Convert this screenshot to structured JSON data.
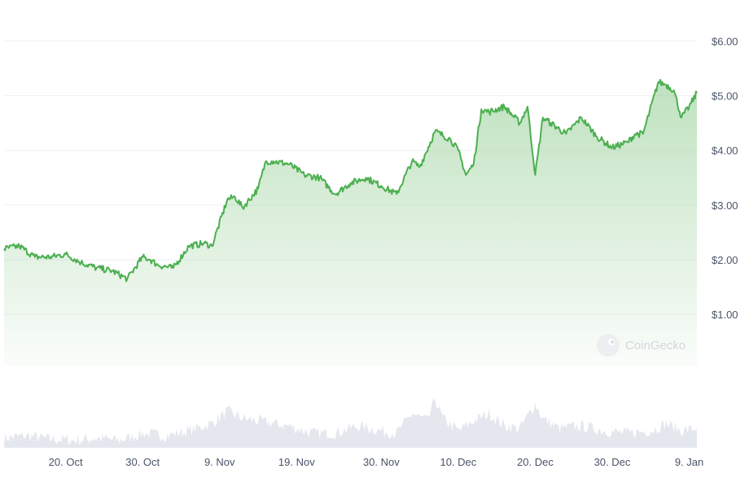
{
  "chart_data": {
    "type": "area",
    "title": "",
    "xlabel": "",
    "ylabel": "",
    "y_tick_labels": [
      "$1.00",
      "$2.00",
      "$3.00",
      "$4.00",
      "$5.00",
      "$6.00"
    ],
    "y_tick_values": [
      1,
      2,
      3,
      4,
      5,
      6
    ],
    "ylim": [
      0.05,
      6.05
    ],
    "x_tick_labels": [
      "20. Oct",
      "30. Oct",
      "9. Nov",
      "19. Nov",
      "30. Nov",
      "10. Dec",
      "20. Dec",
      "30. Dec",
      "9. Jan"
    ],
    "x_tick_dates": [
      "2023-10-20",
      "2023-10-30",
      "2023-11-09",
      "2023-11-19",
      "2023-11-30",
      "2023-12-10",
      "2023-12-20",
      "2023-12-30",
      "2024-01-09"
    ],
    "xlim": [
      "2023-10-12",
      "2024-01-10"
    ],
    "grid": true,
    "watermark": "CoinGecko",
    "line_color": "#4caf50",
    "fill_color": "#8bc98b",
    "volume_color": "#e4e8ee",
    "series": [
      {
        "kind": "price",
        "x": [
          "2023-10-12",
          "2023-10-14",
          "2023-10-16",
          "2023-10-18",
          "2023-10-20",
          "2023-10-22",
          "2023-10-24",
          "2023-10-26",
          "2023-10-28",
          "2023-10-30",
          "2023-10-31",
          "2023-11-01",
          "2023-11-03",
          "2023-11-05",
          "2023-11-07",
          "2023-11-08",
          "2023-11-10",
          "2023-11-11",
          "2023-11-12",
          "2023-11-14",
          "2023-11-15",
          "2023-11-16",
          "2023-11-18",
          "2023-11-20",
          "2023-11-22",
          "2023-11-24",
          "2023-11-26",
          "2023-11-28",
          "2023-11-30",
          "2023-12-02",
          "2023-12-04",
          "2023-12-05",
          "2023-12-07",
          "2023-12-09",
          "2023-12-10",
          "2023-12-11",
          "2023-12-12",
          "2023-12-13",
          "2023-12-14",
          "2023-12-16",
          "2023-12-18",
          "2023-12-19",
          "2023-12-20",
          "2023-12-21",
          "2023-12-22",
          "2023-12-24",
          "2023-12-26",
          "2023-12-28",
          "2023-12-30",
          "2024-01-01",
          "2024-01-02",
          "2024-01-03",
          "2024-01-05",
          "2024-01-06",
          "2024-01-07",
          "2024-01-08",
          "2024-01-09",
          "2024-01-10"
        ],
        "y": [
          2.2,
          2.25,
          2.05,
          2.05,
          2.1,
          1.95,
          1.85,
          1.8,
          1.65,
          2.05,
          2.0,
          1.9,
          1.85,
          2.25,
          2.3,
          2.25,
          3.1,
          3.15,
          2.95,
          3.3,
          3.8,
          3.8,
          3.75,
          3.55,
          3.5,
          3.2,
          3.4,
          3.5,
          3.35,
          3.2,
          3.8,
          3.7,
          4.35,
          4.2,
          4.0,
          3.55,
          3.75,
          4.75,
          4.7,
          4.8,
          4.5,
          4.8,
          3.55,
          4.6,
          4.5,
          4.3,
          4.6,
          4.25,
          4.05,
          4.15,
          4.3,
          4.3,
          5.25,
          5.2,
          5.1,
          4.6,
          4.8,
          5.05
        ]
      },
      {
        "kind": "volume",
        "x": [
          "2023-10-12",
          "2023-10-15",
          "2023-10-18",
          "2023-10-21",
          "2023-10-24",
          "2023-10-27",
          "2023-10-30",
          "2023-11-02",
          "2023-11-05",
          "2023-11-08",
          "2023-11-10",
          "2023-11-12",
          "2023-11-14",
          "2023-11-16",
          "2023-11-18",
          "2023-11-21",
          "2023-11-24",
          "2023-11-27",
          "2023-11-30",
          "2023-12-02",
          "2023-12-04",
          "2023-12-06",
          "2023-12-07",
          "2023-12-08",
          "2023-12-10",
          "2023-12-12",
          "2023-12-14",
          "2023-12-16",
          "2023-12-18",
          "2023-12-20",
          "2023-12-21",
          "2023-12-23",
          "2023-12-26",
          "2023-12-29",
          "2024-01-01",
          "2024-01-04",
          "2024-01-06",
          "2024-01-08",
          "2024-01-10"
        ],
        "y": [
          0.2,
          0.25,
          0.18,
          0.15,
          0.2,
          0.15,
          0.3,
          0.25,
          0.35,
          0.5,
          0.75,
          0.6,
          0.55,
          0.5,
          0.45,
          0.3,
          0.3,
          0.45,
          0.35,
          0.3,
          0.7,
          0.55,
          1.0,
          0.6,
          0.35,
          0.55,
          0.7,
          0.45,
          0.4,
          0.9,
          0.6,
          0.4,
          0.45,
          0.35,
          0.3,
          0.35,
          0.5,
          0.35,
          0.4
        ]
      }
    ]
  }
}
